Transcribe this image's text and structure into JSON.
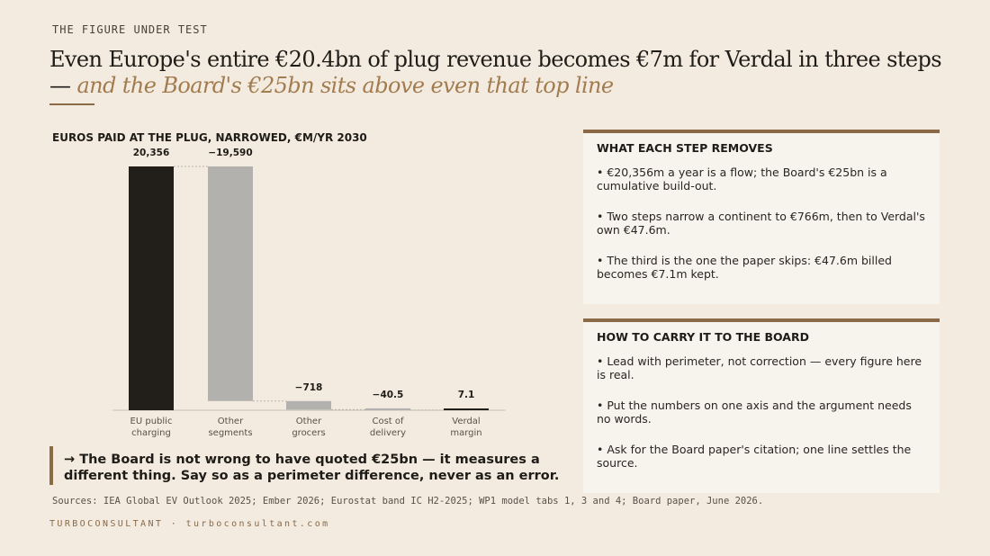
{
  "kicker": "THE FIGURE UNDER TEST",
  "headline": {
    "main": "Even Europe's entire €20.4bn of plug revenue becomes €7m for Verdal in three steps — ",
    "accent": "and the Board's €25bn sits above even that top line"
  },
  "colors": {
    "background": "#f3ebe0",
    "accent": "#8a6a47",
    "total_bar": "#221e19",
    "step_bar": "#b3b1ae",
    "result_bar": "#221e19"
  },
  "chart_data": {
    "type": "bar",
    "title": "EUROS PAID AT THE PLUG, NARROWED, €M/YR 2030",
    "categories": [
      [
        "EU public",
        "charging"
      ],
      [
        "Other",
        "segments"
      ],
      [
        "Other",
        "grocers"
      ],
      [
        "Cost of",
        "delivery"
      ],
      [
        "Verdal",
        "margin"
      ]
    ],
    "values": [
      20356,
      -19590,
      -718,
      -40.5,
      7.1
    ],
    "value_labels": [
      "20,356",
      "−19,590",
      "−718",
      "−40.5",
      "7.1"
    ],
    "kinds": [
      "total",
      "step",
      "step",
      "step",
      "total"
    ],
    "ylim": [
      0,
      20356
    ]
  },
  "callout": "→ The Board is not wrong to have quoted €25bn — it measures a different thing. Say so as a perimeter difference, never as an error.",
  "panel1": {
    "title": "WHAT EACH STEP REMOVES",
    "items": [
      "•  €20,356m a year is a flow; the Board's €25bn is a cumulative build-out.",
      "•  Two steps narrow a continent to €766m, then to Verdal's own €47.6m.",
      "•  The third is the one the paper skips: €47.6m billed becomes €7.1m kept."
    ]
  },
  "panel2": {
    "title": "HOW TO CARRY IT TO THE BOARD",
    "items": [
      "•  Lead with perimeter, not correction — every figure here is real.",
      "•  Put the numbers on one axis and the argument needs no words.",
      "•  Ask for the Board paper's citation; one line settles the source."
    ]
  },
  "sources": "Sources: IEA Global EV Outlook 2025; Ember 2026; Eurostat band IC H2-2025; WP1 model tabs 1, 3 and 4; Board paper, June 2026.",
  "footer": "TURBOCONSULTANT · turboconsultant.com"
}
